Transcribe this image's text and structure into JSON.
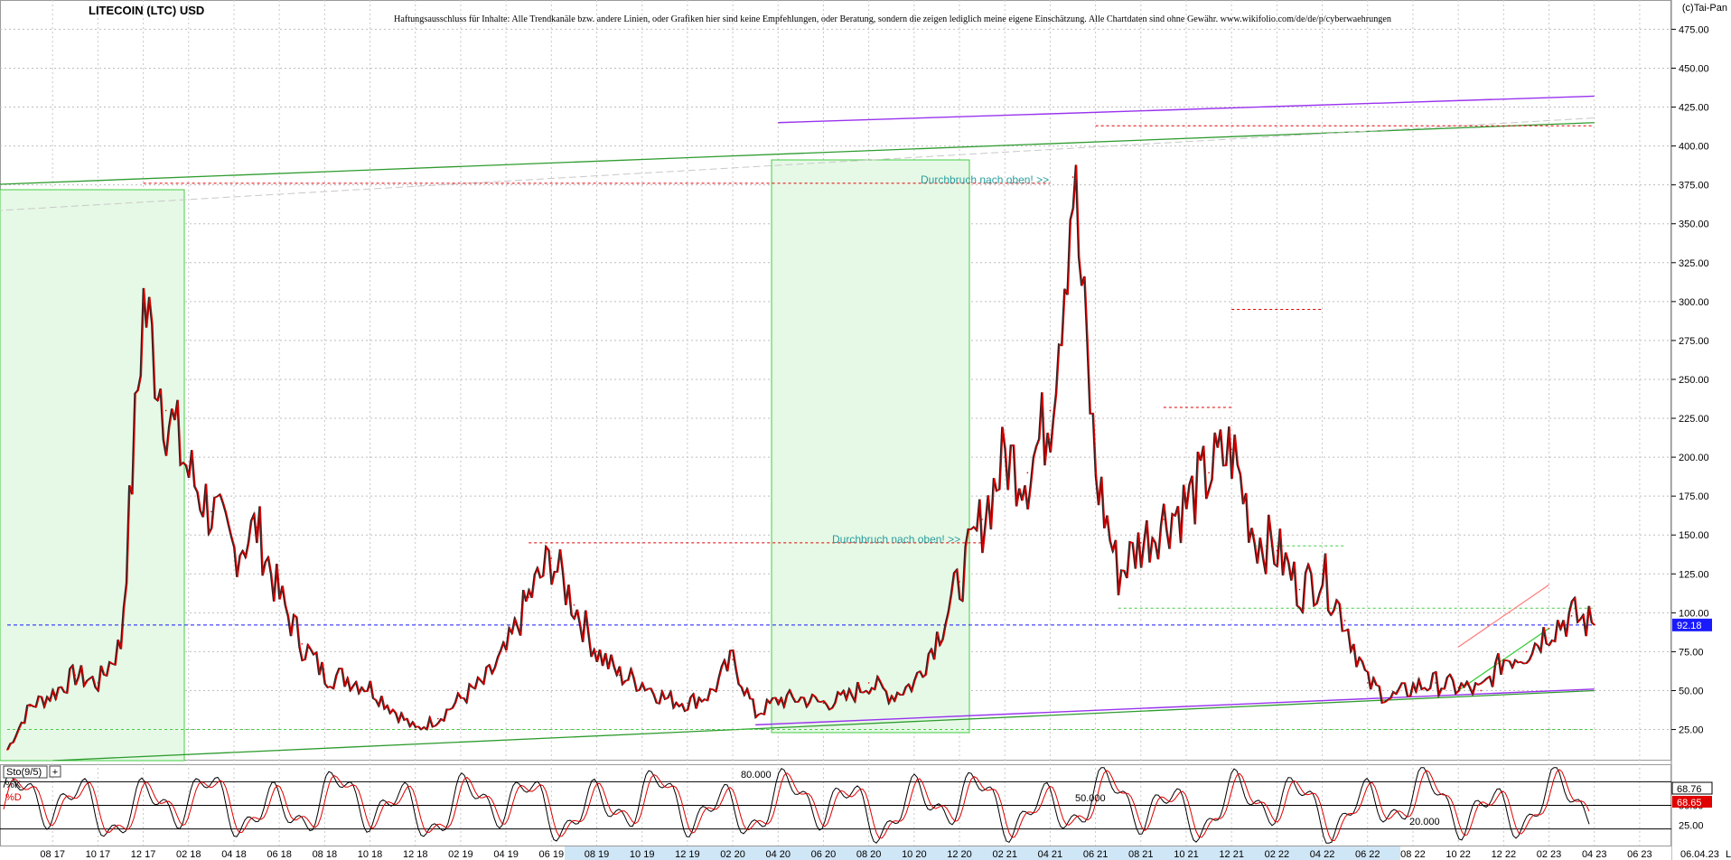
{
  "chart_data": {
    "type": "line",
    "title": "LITECOIN (LTC) USD",
    "disclaimer": "Haftungsausschluss für Inhalte: Alle Trendkanäle bzw. andere Linien, oder Grafiken hier sind keine Empfehlungen, oder Beratung, sondern die zeigen lediglich meine eigene Einschätzung. Alle Chartdaten sind ohne Gewähr.  www.wikifolio.com/de/de/p/cyberwaehrungen",
    "copyright": "(c)Tai-Pan",
    "price_ticks": [
      "475.00",
      "450.00",
      "425.00",
      "400.00",
      "375.00",
      "350.00",
      "325.00",
      "300.00",
      "275.00",
      "250.00",
      "225.00",
      "200.00",
      "175.00",
      "150.00",
      "125.00",
      "100.00",
      "75.00",
      "50.00",
      "25.00"
    ],
    "price_tick_values": [
      475,
      450,
      425,
      400,
      375,
      350,
      325,
      300,
      275,
      250,
      225,
      200,
      175,
      150,
      125,
      100,
      75,
      50,
      25
    ],
    "ylim": [
      5,
      488
    ],
    "last_price": "92.18",
    "last_value": 92.18,
    "x_ticks": [
      "08 17",
      "10 17",
      "12 17",
      "02 18",
      "04 18",
      "06 18",
      "08 18",
      "10 18",
      "12 18",
      "02 19",
      "04 19",
      "06 19",
      "08 19",
      "10 19",
      "12 19",
      "02 20",
      "04 20",
      "06 20",
      "08 20",
      "10 20",
      "12 20",
      "02 21",
      "04 21",
      "06 21",
      "08 21",
      "10 21",
      "12 21",
      "02 22",
      "04 22",
      "06 22",
      "08 22",
      "10 22",
      "12 22",
      "02 23",
      "04 23",
      "06 23"
    ],
    "date_label": "06.04.23",
    "x_range_months": [
      "2017-06",
      "2023-07"
    ],
    "series": [
      {
        "name": "",
        "color": "#e00000",
        "x": [
          "2017-06",
          "2017-07",
          "2017-08",
          "2017-09",
          "2017-10",
          "2017-11",
          "2017-12",
          "2018-01",
          "2018-02",
          "2018-03",
          "2018-04",
          "2018-05",
          "2018-06",
          "2018-07",
          "2018-08",
          "2018-09",
          "2018-10",
          "2018-11",
          "2018-12",
          "2019-01",
          "2019-02",
          "2019-03",
          "2019-04",
          "2019-05",
          "2019-06",
          "2019-07",
          "2019-08",
          "2019-09",
          "2019-10",
          "2019-11",
          "2019-12",
          "2020-01",
          "2020-02",
          "2020-03",
          "2020-04",
          "2020-05",
          "2020-06",
          "2020-07",
          "2020-08",
          "2020-09",
          "2020-10",
          "2020-11",
          "2020-12",
          "2021-01",
          "2021-02",
          "2021-03",
          "2021-04",
          "2021-05",
          "2021-06",
          "2021-07",
          "2021-08",
          "2021-09",
          "2021-10",
          "2021-11",
          "2021-12",
          "2022-01",
          "2022-02",
          "2022-03",
          "2022-04",
          "2022-05",
          "2022-06",
          "2022-07",
          "2022-08",
          "2022-09",
          "2022-10",
          "2022-11",
          "2022-12",
          "2023-01",
          "2023-02",
          "2023-03",
          "2023-04"
        ],
        "y": [
          12,
          40,
          48,
          60,
          55,
          80,
          300,
          230,
          190,
          165,
          140,
          155,
          110,
          80,
          60,
          58,
          52,
          38,
          25,
          32,
          45,
          55,
          75,
          110,
          135,
          105,
          75,
          60,
          55,
          45,
          42,
          48,
          70,
          35,
          44,
          45,
          42,
          45,
          55,
          47,
          55,
          85,
          120,
          160,
          200,
          190,
          230,
          380,
          190,
          125,
          145,
          160,
          170,
          190,
          205,
          150,
          140,
          115,
          125,
          95,
          55,
          45,
          52,
          55,
          52,
          50,
          70,
          75,
          90,
          98,
          92.18
        ]
      }
    ],
    "stochastic": {
      "label": "Sto(9/5)",
      "k_label": "%K",
      "d_label": "%D",
      "k_value": "68.76",
      "d_value": "68.65",
      "ticks": [
        "75.00",
        "50.00",
        "25.00"
      ],
      "tick_values": [
        75,
        50,
        25
      ],
      "levels": [
        "80.000",
        "50.000",
        "20.000"
      ],
      "level_values": [
        80,
        50,
        20
      ]
    },
    "annotations": [
      "Durchbruch nach oben! >>",
      "Durchbruch nach oben! >>"
    ],
    "legend": "none",
    "grid": true
  }
}
